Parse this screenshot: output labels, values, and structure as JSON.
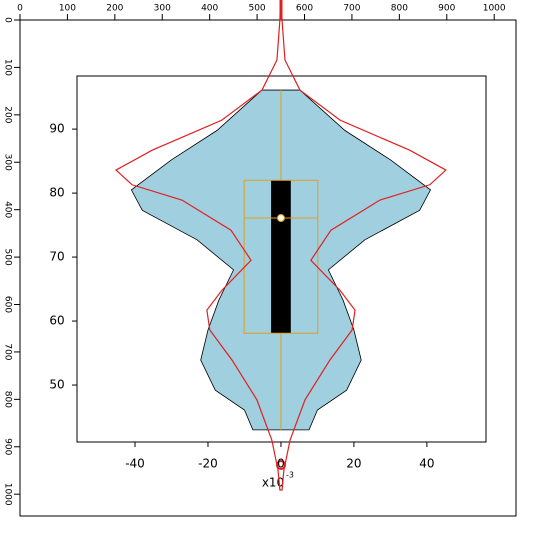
{
  "chart_data": {
    "type": "violin",
    "ruler": {
      "lim": [
        0,
        1046
      ],
      "ticks": [
        0,
        100,
        200,
        300,
        400,
        500,
        600,
        700,
        800,
        900,
        1000
      ]
    },
    "xlim": [
      -55.9,
      56.2
    ],
    "xticks": [
      -40,
      -20,
      0,
      20,
      40
    ],
    "ylim": [
      41.1,
      98.3
    ],
    "yticks": [
      90,
      80,
      70,
      60,
      50
    ],
    "x_label": "x10",
    "x_exponent": "-3",
    "violin": {
      "color": "#a0cfe0",
      "y": [
        96.1,
        89.8,
        85.2,
        80.5,
        77.3,
        72.7,
        68.0,
        63.3,
        58.6,
        53.9,
        49.2,
        46.1,
        43.0
      ],
      "half_width": [
        5.2,
        17.5,
        30,
        41,
        38,
        23,
        13,
        17,
        20,
        22,
        18,
        10,
        7.7
      ]
    },
    "density": {
      "color": "#e02020",
      "y": [
        110.2,
        107.0,
        100.8,
        96.1,
        91.4,
        86.7,
        83.6,
        81.3,
        78.9,
        74.2,
        69.5,
        64.8,
        61.7,
        58.6,
        53.9,
        47.7,
        41.4,
        36.7,
        33.6
      ],
      "half_width": [
        0.1,
        0.3,
        1.1,
        5.2,
        16.2,
        35.3,
        45.2,
        40.8,
        27.1,
        13.7,
        8.2,
        16.2,
        20.3,
        19.5,
        13.4,
        6.6,
        2.5,
        0.8,
        0.3
      ]
    },
    "box": {
      "color": "#e0a020",
      "q1": 58.1,
      "q3": 82.0,
      "median": 76.1,
      "whisker_low": 43.0,
      "whisker_high": 96.1,
      "half_width": 10.1,
      "bar_half_width": 2.7
    }
  }
}
